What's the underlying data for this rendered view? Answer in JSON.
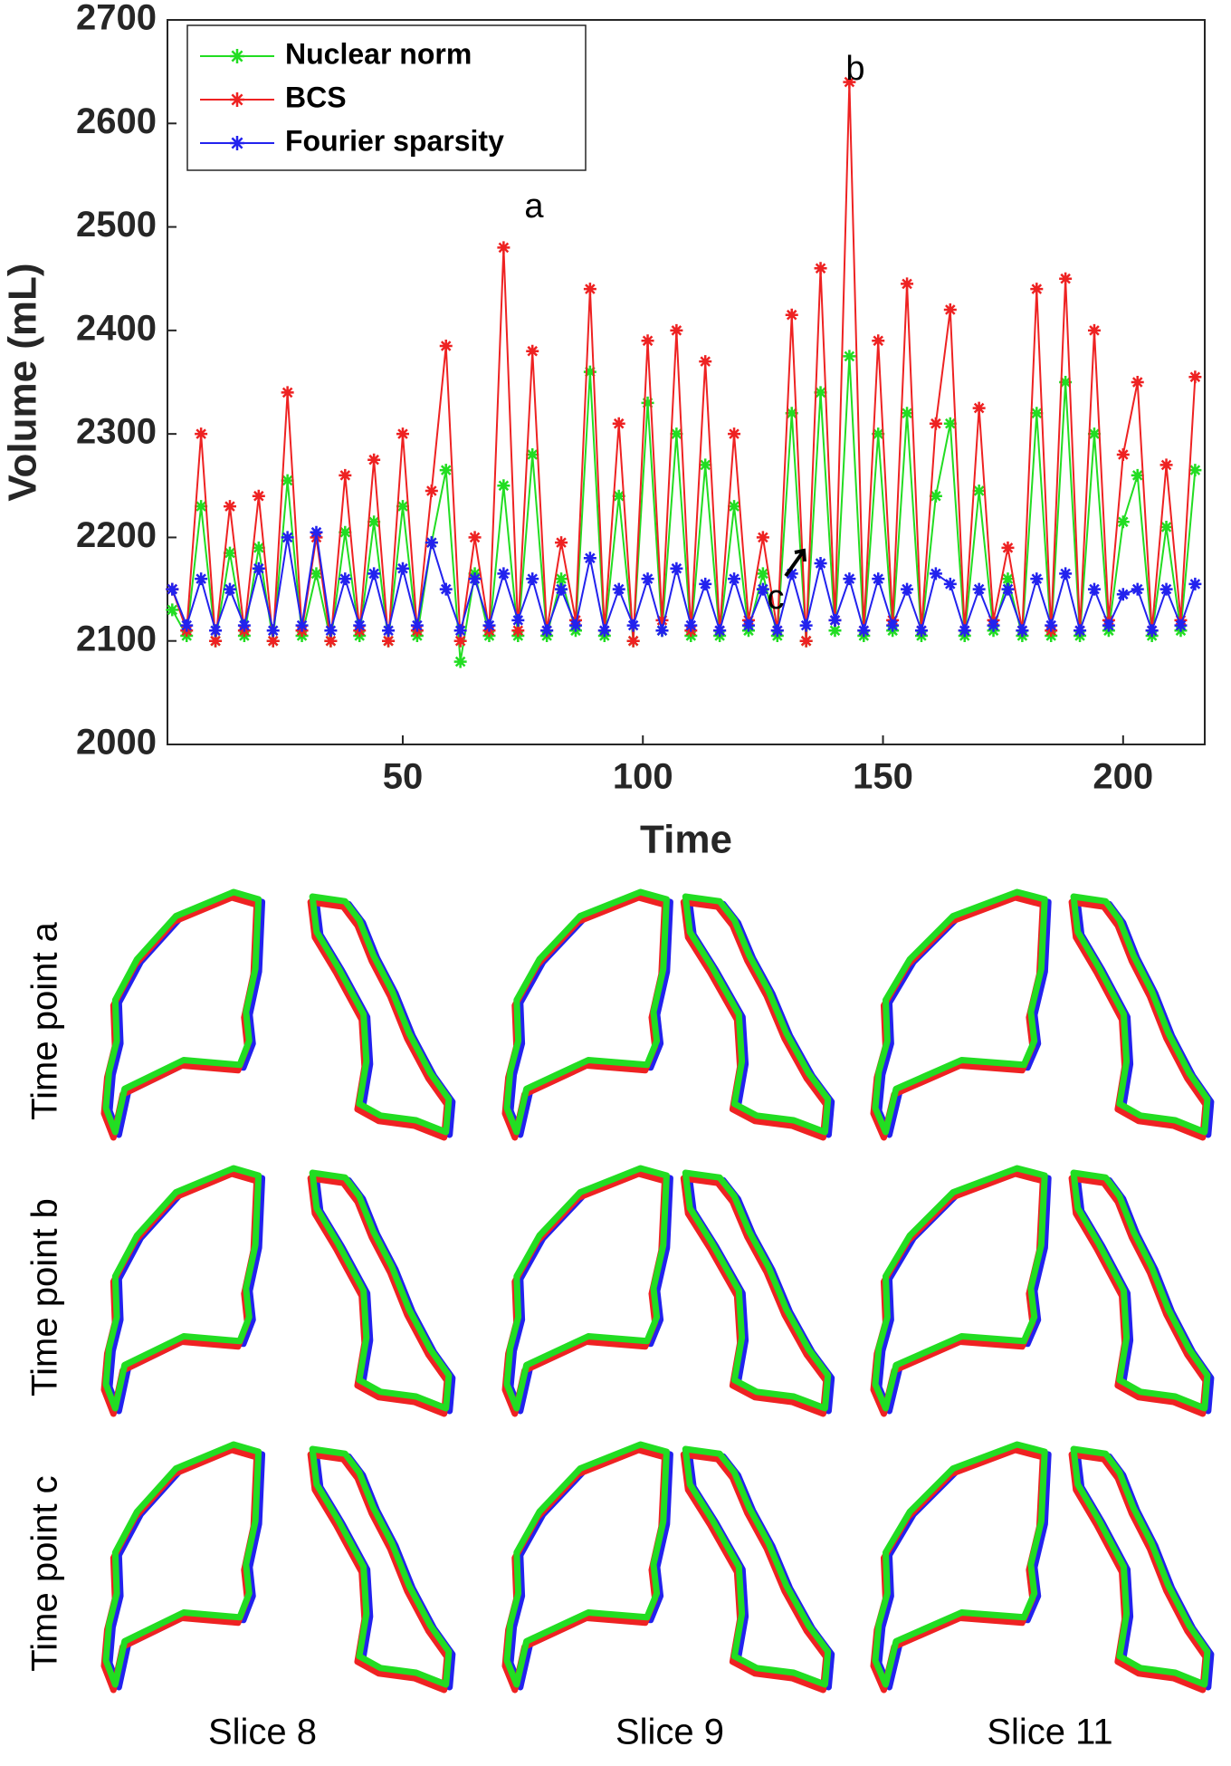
{
  "chart_data": {
    "type": "line",
    "x_label": "Time",
    "y_label": "Volume (mL)",
    "xlim": [
      1,
      217
    ],
    "xticks": [
      50,
      100,
      150,
      200
    ],
    "ylim": [
      2000,
      2700
    ],
    "yticks": [
      2000,
      2100,
      2200,
      2300,
      2400,
      2500,
      2600,
      2700
    ],
    "legend": "upper left",
    "x": [
      2,
      5,
      8,
      11,
      14,
      17,
      20,
      23,
      26,
      29,
      32,
      35,
      38,
      41,
      44,
      47,
      50,
      53,
      56,
      59,
      62,
      65,
      68,
      71,
      74,
      77,
      80,
      83,
      86,
      89,
      92,
      95,
      98,
      101,
      104,
      107,
      110,
      113,
      116,
      119,
      122,
      125,
      128,
      131,
      134,
      137,
      140,
      143,
      146,
      149,
      152,
      155,
      158,
      161,
      164,
      167,
      170,
      173,
      176,
      179,
      182,
      185,
      188,
      191,
      194,
      197,
      200,
      203,
      206,
      209,
      212,
      215
    ],
    "series": [
      {
        "name": "Nuclear norm",
        "color": "#22dd22",
        "values": [
          2130,
          2105,
          2230,
          2100,
          2185,
          2105,
          2190,
          2100,
          2255,
          2105,
          2165,
          2100,
          2205,
          2105,
          2215,
          2100,
          2230,
          2105,
          2195,
          2265,
          2080,
          2165,
          2105,
          2250,
          2105,
          2280,
          2105,
          2160,
          2110,
          2360,
          2105,
          2240,
          2100,
          2330,
          2110,
          2300,
          2105,
          2270,
          2105,
          2230,
          2110,
          2165,
          2105,
          2320,
          2100,
          2340,
          2110,
          2375,
          2105,
          2300,
          2110,
          2320,
          2105,
          2240,
          2310,
          2105,
          2245,
          2110,
          2160,
          2105,
          2320,
          2105,
          2350,
          2105,
          2300,
          2110,
          2215,
          2260,
          2105,
          2210,
          2110,
          2265
        ]
      },
      {
        "name": "BCS",
        "color": "#ee2222",
        "values": [
          2150,
          2110,
          2300,
          2100,
          2230,
          2110,
          2240,
          2100,
          2340,
          2110,
          2200,
          2100,
          2260,
          2110,
          2275,
          2100,
          2300,
          2110,
          2245,
          2385,
          2100,
          2200,
          2110,
          2480,
          2110,
          2380,
          2110,
          2195,
          2120,
          2440,
          2110,
          2310,
          2100,
          2390,
          2120,
          2400,
          2110,
          2370,
          2110,
          2300,
          2120,
          2200,
          2110,
          2415,
          2100,
          2460,
          2120,
          2640,
          2110,
          2390,
          2120,
          2445,
          2110,
          2310,
          2420,
          2110,
          2325,
          2120,
          2190,
          2110,
          2440,
          2110,
          2450,
          2110,
          2400,
          2120,
          2280,
          2350,
          2110,
          2270,
          2120,
          2355
        ]
      },
      {
        "name": "Fourier sparsity",
        "color": "#2222ee",
        "values": [
          2150,
          2115,
          2160,
          2110,
          2150,
          2115,
          2170,
          2110,
          2200,
          2115,
          2205,
          2110,
          2160,
          2115,
          2165,
          2110,
          2170,
          2115,
          2195,
          2150,
          2110,
          2160,
          2115,
          2165,
          2120,
          2160,
          2110,
          2150,
          2115,
          2180,
          2110,
          2150,
          2115,
          2160,
          2110,
          2170,
          2115,
          2155,
          2110,
          2160,
          2115,
          2150,
          2110,
          2165,
          2115,
          2175,
          2120,
          2160,
          2110,
          2160,
          2115,
          2150,
          2110,
          2165,
          2155,
          2110,
          2150,
          2115,
          2150,
          2110,
          2160,
          2115,
          2165,
          2110,
          2150,
          2115,
          2145,
          2150,
          2110,
          2150,
          2115,
          2155
        ]
      }
    ],
    "annotations": [
      "a",
      "b",
      "c"
    ]
  },
  "panels": {
    "row_labels": [
      "Time point a",
      "Time point b",
      "Time point c"
    ],
    "column_labels": [
      "Slice 8",
      "Slice 9",
      "Slice 11"
    ]
  }
}
